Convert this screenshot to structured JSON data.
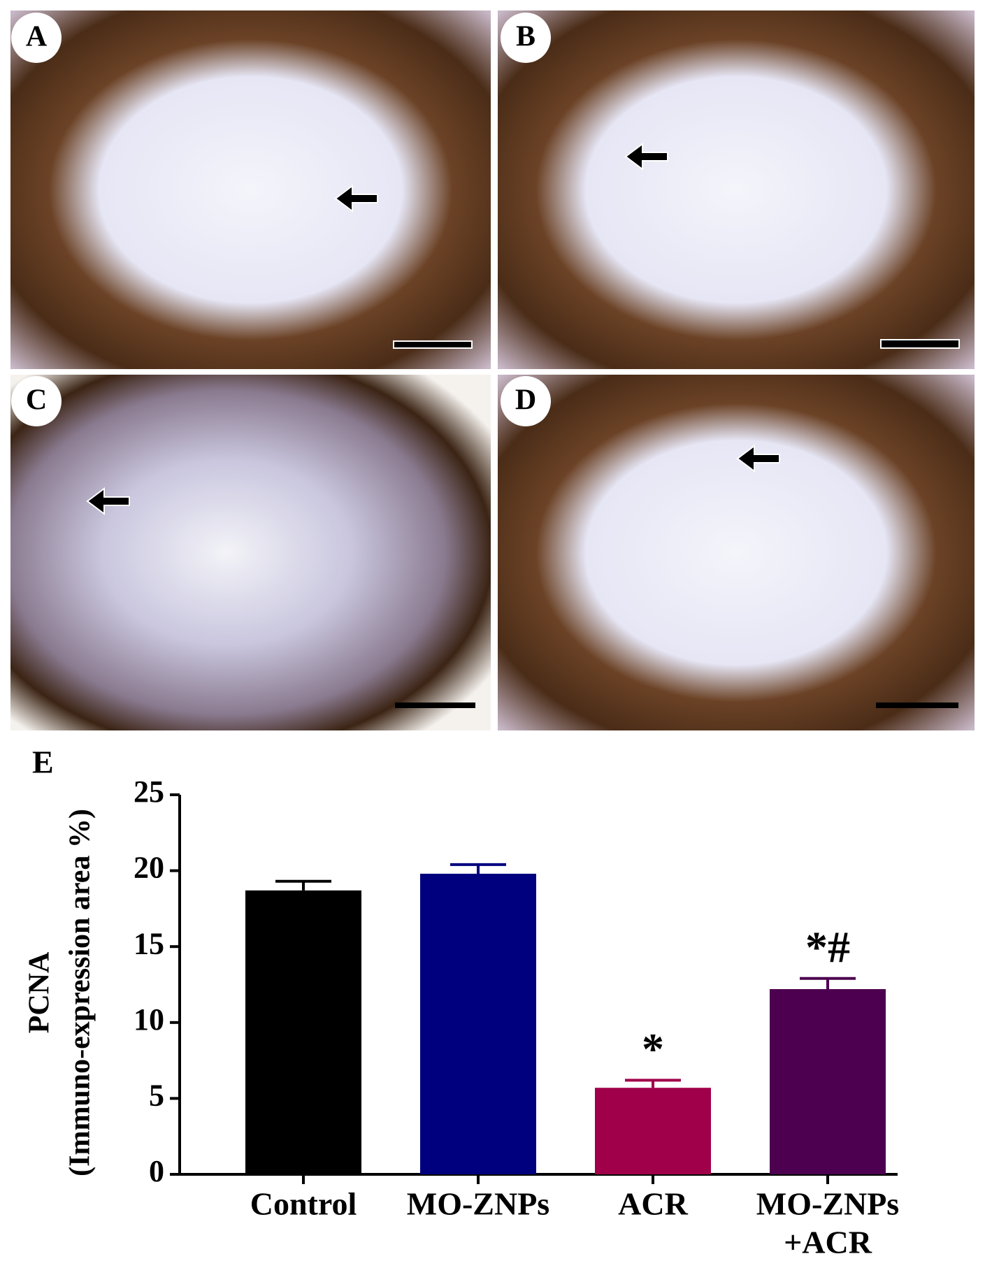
{
  "panels": {
    "labels": [
      "A",
      "B",
      "C",
      "D"
    ]
  },
  "chart_data": {
    "type": "bar",
    "label": "E",
    "y_label": [
      "PCNA",
      "(Immuno-expression area %)"
    ],
    "categories": [
      [
        "Control"
      ],
      [
        "MO-ZNPs"
      ],
      [
        "ACR"
      ],
      [
        "MO-ZNPs",
        "+ACR"
      ]
    ],
    "values": [
      18.7,
      19.8,
      5.7,
      12.2
    ],
    "errors": [
      0.6,
      0.6,
      0.5,
      0.7
    ],
    "colors": [
      "#000000",
      "#00007f",
      "#a0004a",
      "#4d004f"
    ],
    "value_annotations": [
      null,
      null,
      "*",
      "*#"
    ],
    "ylim": [
      0,
      25
    ],
    "yticks": [
      0,
      5,
      10,
      15,
      20,
      25
    ],
    "grid": false
  }
}
